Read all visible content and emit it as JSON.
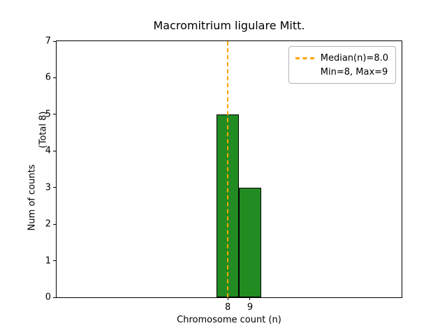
{
  "chart_data": {
    "type": "bar",
    "title": "Macromitrium ligulare Mitt.",
    "xlabel": "Chromosome count (n)",
    "ylabel": "Num of counts",
    "ylabel_secondary": "(Total 8)",
    "categories": [
      8,
      9
    ],
    "values": [
      5,
      3
    ],
    "bar_width": 1,
    "bar_color": "#228B22",
    "bar_edge_color": "#000000",
    "xlim": [
      0.31,
      15.81
    ],
    "ylim": [
      0,
      7
    ],
    "xticks": [
      8,
      9
    ],
    "yticks": [
      0,
      1,
      2,
      3,
      4,
      5,
      6,
      7
    ],
    "median": 8.0,
    "median_color": "#FFA500",
    "total_counts": 8,
    "min": 8,
    "max": 9,
    "legend_position": "upper right",
    "grid": false,
    "legend": {
      "median_label": "Median(n)=8.0",
      "minmax_label": "Min=8, Max=9"
    }
  }
}
